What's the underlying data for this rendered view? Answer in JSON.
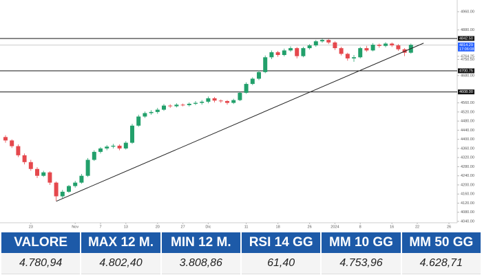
{
  "chart_data": {
    "type": "candlestick",
    "open": [
      4410,
      4395,
      4370,
      4330,
      4300,
      4270,
      4240,
      4255,
      4210,
      4150,
      4170,
      4195,
      4210,
      4240,
      4310,
      4345,
      4360,
      4368,
      4372,
      4360,
      4385,
      4460,
      4500,
      4515,
      4520,
      4530,
      4548,
      4545,
      4552,
      4550,
      4556,
      4560,
      4565,
      4580,
      4570,
      4568,
      4560,
      4572,
      4604,
      4643,
      4666,
      4695,
      4760,
      4782,
      4770,
      4790,
      4800,
      4765,
      4800,
      4812,
      4830,
      4836,
      4825,
      4800,
      4775,
      4755,
      4760,
      4800,
      4790,
      4815,
      4810,
      4820,
      4812,
      4795,
      4780
    ],
    "high": [
      4418,
      4400,
      4378,
      4338,
      4310,
      4278,
      4262,
      4260,
      4215,
      4178,
      4200,
      4218,
      4248,
      4318,
      4352,
      4366,
      4375,
      4380,
      4378,
      4392,
      4468,
      4508,
      4522,
      4528,
      4538,
      4555,
      4554,
      4558,
      4557,
      4562,
      4568,
      4572,
      4588,
      4586,
      4575,
      4572,
      4578,
      4610,
      4650,
      4672,
      4702,
      4768,
      4790,
      4788,
      4798,
      4808,
      4805,
      4806,
      4818,
      4836,
      4842,
      4840,
      4830,
      4806,
      4780,
      4770,
      4806,
      4810,
      4822,
      4820,
      4826,
      4825,
      4818,
      4800,
      4820
    ],
    "low": [
      4385,
      4362,
      4322,
      4290,
      4262,
      4230,
      4235,
      4200,
      4130,
      4140,
      4165,
      4188,
      4205,
      4235,
      4305,
      4338,
      4352,
      4360,
      4352,
      4355,
      4380,
      4455,
      4494,
      4508,
      4512,
      4525,
      4538,
      4540,
      4545,
      4544,
      4550,
      4552,
      4558,
      4562,
      4560,
      4552,
      4555,
      4568,
      4600,
      4638,
      4660,
      4690,
      4752,
      4762,
      4764,
      4784,
      4755,
      4760,
      4794,
      4806,
      4824,
      4818,
      4792,
      4768,
      4745,
      4740,
      4755,
      4784,
      4786,
      4802,
      4804,
      4805,
      4788,
      4765,
      4776
    ],
    "close": [
      4395,
      4370,
      4330,
      4300,
      4270,
      4240,
      4255,
      4210,
      4150,
      4170,
      4195,
      4210,
      4240,
      4310,
      4345,
      4360,
      4368,
      4372,
      4360,
      4385,
      4460,
      4500,
      4515,
      4520,
      4530,
      4548,
      4545,
      4552,
      4550,
      4556,
      4560,
      4565,
      4580,
      4570,
      4568,
      4560,
      4572,
      4604,
      4643,
      4666,
      4695,
      4760,
      4782,
      4770,
      4790,
      4800,
      4765,
      4800,
      4812,
      4830,
      4836,
      4825,
      4800,
      4775,
      4755,
      4760,
      4800,
      4790,
      4815,
      4810,
      4820,
      4812,
      4795,
      4780,
      4814.29
    ],
    "up_color": "#22a06b",
    "down_color": "#e5484d",
    "xlim": [
      0,
      70
    ],
    "ylim": [
      4040,
      4960
    ],
    "yticks": [
      {
        "value": 4960,
        "label": "4960.00"
      },
      {
        "value": 4880,
        "label": "4880.00"
      },
      {
        "value": 4764.25,
        "label": "4764.25"
      },
      {
        "value": 4750.5,
        "label": "4750.50"
      },
      {
        "value": 4680,
        "label": "4680.00"
      },
      {
        "value": 4560,
        "label": "4560.00"
      },
      {
        "value": 4520,
        "label": "4520.00"
      },
      {
        "value": 4480,
        "label": "4480.00"
      },
      {
        "value": 4440,
        "label": "4440.00"
      },
      {
        "value": 4400,
        "label": "4400.00"
      },
      {
        "value": 4360,
        "label": "4360.00"
      },
      {
        "value": 4320,
        "label": "4320.00"
      },
      {
        "value": 4280,
        "label": "4280.00"
      },
      {
        "value": 4240,
        "label": "4240.00"
      },
      {
        "value": 4200,
        "label": "4200.00"
      },
      {
        "value": 4160,
        "label": "4160.00"
      },
      {
        "value": 4120,
        "label": "4120.00"
      },
      {
        "value": 4080,
        "label": "4080.00"
      },
      {
        "value": 4040,
        "label": "4040.00"
      }
    ],
    "xticks": [
      {
        "value": 4,
        "label": "23"
      },
      {
        "value": 11,
        "label": "Nov"
      },
      {
        "value": 15,
        "label": "7"
      },
      {
        "value": 19,
        "label": "13"
      },
      {
        "value": 24,
        "label": "20"
      },
      {
        "value": 28,
        "label": "27"
      },
      {
        "value": 32,
        "label": "Dic"
      },
      {
        "value": 38,
        "label": "11"
      },
      {
        "value": 43,
        "label": "18"
      },
      {
        "value": 48,
        "label": "26"
      },
      {
        "value": 52,
        "label": "2024"
      },
      {
        "value": 56,
        "label": "8"
      },
      {
        "value": 61,
        "label": "16"
      },
      {
        "value": 65,
        "label": "22"
      },
      {
        "value": 70,
        "label": "26"
      }
    ],
    "levels": [
      {
        "value": 4842.5,
        "label": "4842.50"
      },
      {
        "value": 4700.75,
        "label": "4700.75"
      },
      {
        "value": 4608,
        "label": "4608.00"
      }
    ],
    "current_price": {
      "value": 4814.29,
      "label": "4814.29",
      "time": "17:06:08",
      "color": "#2962ff"
    },
    "trendline": {
      "x": [
        8,
        66
      ],
      "y": [
        4128,
        4822
      ]
    }
  },
  "table": {
    "header": [
      "VALORE",
      "MAX 12 M.",
      "MIN 12 M.",
      "RSI 14 GG",
      "MM 10 GG",
      "MM 50 GG"
    ],
    "rows": [
      [
        "4.780,94",
        "4.802,40",
        "3.808,86",
        "61,40",
        "4.753,96",
        "4.628,71"
      ]
    ]
  }
}
